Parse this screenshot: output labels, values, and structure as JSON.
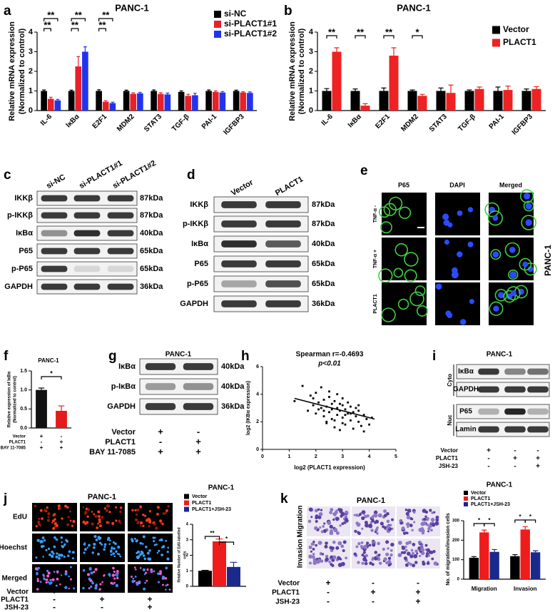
{
  "chart_data": [
    {
      "type": "bar",
      "panel": "a",
      "title": "PANC-1",
      "ylabel": [
        "Relative mRNA expression",
        "(Normalized to control)"
      ],
      "categories": [
        "IL-6",
        "IκBα",
        "E2F1",
        "MDM2",
        "STAT3",
        "TGF-β",
        "PAI-1",
        "IGFBP3"
      ],
      "series": [
        {
          "name": "si-NC",
          "color": "#000000",
          "values": [
            1.0,
            1.0,
            1.0,
            1.0,
            1.0,
            0.95,
            1.0,
            1.0
          ],
          "errors": [
            0.05,
            0.04,
            0.06,
            0.04,
            0.05,
            0.05,
            0.05,
            0.04
          ]
        },
        {
          "name": "si-PLACT1#1",
          "color": "#e8202a",
          "values": [
            0.6,
            2.25,
            0.45,
            0.85,
            0.85,
            0.75,
            0.95,
            0.92
          ],
          "errors": [
            0.08,
            0.5,
            0.05,
            0.05,
            0.06,
            0.08,
            0.05,
            0.04
          ]
        },
        {
          "name": "si-PLACT1#2",
          "color": "#2233ee",
          "values": [
            0.52,
            3.0,
            0.38,
            0.88,
            0.82,
            0.78,
            0.92,
            0.9
          ],
          "errors": [
            0.05,
            0.25,
            0.05,
            0.05,
            0.07,
            0.1,
            0.05,
            0.05
          ]
        }
      ],
      "significance": [
        "**",
        "**",
        "**",
        "**",
        "**",
        "**"
      ],
      "ylim": [
        0,
        4
      ],
      "yticks": [
        0,
        1,
        2,
        3,
        4
      ]
    },
    {
      "type": "bar",
      "panel": "b",
      "title": "PANC-1",
      "ylabel": [
        "Relative mRNA expression",
        "(Normalized to control)"
      ],
      "categories": [
        "IL-6",
        "IκBα",
        "E2F1",
        "MDM2",
        "STAT3",
        "TGF-β",
        "PAI-1",
        "IGFBP3"
      ],
      "series": [
        {
          "name": "Vector",
          "color": "#000000",
          "values": [
            1.0,
            1.0,
            1.0,
            1.0,
            1.0,
            1.0,
            1.0,
            1.0
          ],
          "errors": [
            0.12,
            0.1,
            0.15,
            0.05,
            0.15,
            0.05,
            0.2,
            0.1
          ]
        },
        {
          "name": "PLACT1",
          "color": "#ee2222",
          "values": [
            3.0,
            0.25,
            2.8,
            0.75,
            0.9,
            1.1,
            1.05,
            1.1
          ],
          "errors": [
            0.2,
            0.1,
            0.4,
            0.08,
            0.4,
            0.1,
            0.2,
            0.12
          ]
        }
      ],
      "significance": [
        "**",
        "**",
        "**",
        "*"
      ],
      "ylim": [
        0,
        4
      ],
      "yticks": [
        0,
        1,
        2,
        3,
        4
      ]
    },
    {
      "type": "bar",
      "panel": "f",
      "title": "PANC-1",
      "ylabel": [
        "Relative expression of IκBα",
        "(Normalized to control)"
      ],
      "values": [
        1.0,
        0.45
      ],
      "errors": [
        0.05,
        0.13
      ],
      "colors": [
        "#111111",
        "#e41a1c"
      ],
      "significance": [
        "*"
      ],
      "conditions": [
        {
          "label": "Vector",
          "signs": [
            "+",
            "-"
          ]
        },
        {
          "label": "PLACT1",
          "signs": [
            "-",
            "+"
          ]
        },
        {
          "label": "BAY 11-7085",
          "signs": [
            "+",
            "+"
          ]
        }
      ],
      "ylim": [
        0,
        1.5
      ],
      "yticks": [
        {
          "value": 0,
          "label": "0.0"
        },
        {
          "value": 0.5,
          "label": "0.5"
        },
        {
          "value": 1,
          "label": "1.0"
        },
        {
          "value": 1.5,
          "label": "1.5"
        }
      ]
    },
    {
      "type": "scatter",
      "panel": "h",
      "title": "Spearman r=-0.4693",
      "subtitle": "p<0.01",
      "xlabel": "log2 (PLACT1 expression)",
      "ylabel": "log2 (IKBα expression)",
      "x": [
        1.2,
        1.5,
        1.7,
        1.8,
        1.9,
        2.0,
        2.0,
        2.1,
        2.2,
        2.2,
        2.3,
        2.3,
        2.4,
        2.4,
        2.5,
        2.5,
        2.5,
        2.6,
        2.6,
        2.7,
        2.7,
        2.8,
        2.8,
        2.8,
        2.9,
        2.9,
        3.0,
        3.0,
        3.0,
        3.1,
        3.1,
        3.2,
        3.2,
        3.3,
        3.3,
        3.4,
        3.4,
        3.5,
        3.5,
        3.6,
        3.6,
        3.7,
        3.8,
        3.9,
        4.0,
        4.1,
        2.1,
        2.6,
        3.0,
        2.4,
        2.9,
        3.3,
        1.9,
        3.6,
        2.3,
        2.7,
        3.1,
        3.8
      ],
      "y": [
        3.5,
        4.6,
        2.8,
        3.9,
        3.2,
        4.1,
        2.6,
        3.4,
        3.0,
        4.5,
        2.4,
        3.6,
        3.1,
        1.9,
        3.8,
        2.7,
        4.2,
        3.3,
        2.2,
        3.5,
        1.6,
        3.0,
        2.5,
        4.0,
        2.8,
        1.4,
        3.2,
        2.3,
        3.7,
        2.9,
        1.8,
        2.6,
        3.4,
        2.1,
        3.1,
        2.7,
        1.5,
        2.4,
        3.0,
        2.0,
        2.8,
        1.7,
        2.5,
        2.2,
        1.8,
        2.3,
        2.9,
        2.9,
        1.9,
        2.0,
        3.3,
        2.6,
        3.7,
        3.2,
        2.8,
        2.1,
        2.5,
        1.3
      ],
      "fit": {
        "x": [
          1.2,
          4.2
        ],
        "y": [
          3.7,
          2.2
        ]
      },
      "color": "#000000",
      "xlim": [
        0,
        5
      ],
      "xticks": [
        0,
        1,
        2,
        3,
        4,
        5
      ],
      "ylim": [
        0,
        6
      ],
      "yticks": [
        0,
        2,
        4,
        6
      ]
    },
    {
      "type": "bar",
      "title": "PANC-1",
      "ylabel": [
        "Relative Number of EdU-labelled",
        "cells"
      ],
      "series": [
        {
          "name": "Vector",
          "color": "#000000",
          "values": [
            1.0
          ],
          "errors": [
            0.03
          ]
        },
        {
          "name": "PLACT1",
          "color": "#ee1c1c",
          "values": [
            2.9
          ],
          "errors": [
            0.15
          ]
        },
        {
          "name": "PLACT1+JSH-23",
          "color": "#1a2a8c",
          "values": [
            1.25
          ],
          "errors": [
            0.3
          ]
        }
      ],
      "significance": [
        "**",
        "*"
      ],
      "ylim": [
        0,
        4
      ],
      "yticks": [
        0,
        1,
        2,
        3,
        4
      ]
    },
    {
      "type": "bar",
      "title": "PANC-1",
      "ylabel": [
        "No. of migration/invasion cells"
      ],
      "categories": [
        "Migration",
        "Invasion"
      ],
      "series": [
        {
          "name": "Vector",
          "color": "#000000",
          "values": [
            110,
            118
          ],
          "errors": [
            6,
            8
          ]
        },
        {
          "name": "PLACT1",
          "color": "#ee1c1c",
          "values": [
            240,
            255
          ],
          "errors": [
            12,
            15
          ]
        },
        {
          "name": "PLACT1+JSH-23",
          "color": "#1a2a8c",
          "values": [
            140,
            138
          ],
          "errors": [
            12,
            8
          ]
        }
      ],
      "significance": [
        "*",
        "*",
        "*",
        "*"
      ],
      "ylim": [
        0,
        300
      ],
      "yticks": [
        0,
        100,
        200,
        300
      ]
    }
  ],
  "blots": [
    {
      "panel": "c",
      "lanes": [
        "si-NC",
        "si-PLACT1#1",
        "si-PLACT1#2"
      ],
      "rows": [
        {
          "protein": "IKKβ",
          "size": "87kDa"
        },
        {
          "protein": "p-IKKβ",
          "size": "87kDa"
        },
        {
          "protein": "IκBα",
          "size": "40kDa"
        },
        {
          "protein": "P65",
          "size": "65kDa"
        },
        {
          "protein": "p-P65",
          "size": "65kDa"
        },
        {
          "protein": "GAPDH",
          "size": "36kDa"
        }
      ]
    },
    {
      "panel": "d",
      "lanes": [
        "Vector",
        "PLACT1"
      ],
      "rows": [
        {
          "protein": "IKKβ",
          "size": "87kDa"
        },
        {
          "protein": "p-IKKβ",
          "size": "87kDa"
        },
        {
          "protein": "IκBα",
          "size": "40kDa"
        },
        {
          "protein": "P65",
          "size": "65kDa"
        },
        {
          "protein": "p-P65",
          "size": "65kDa"
        },
        {
          "protein": "GAPDH",
          "size": "36kDa"
        }
      ]
    },
    {
      "panel": "g",
      "title": "PANC-1",
      "rows": [
        {
          "protein": "IκBα",
          "size": "40kDa"
        },
        {
          "protein": "p-IκBα",
          "size": "40kDa"
        },
        {
          "protein": "GAPDH",
          "size": "36kDa"
        }
      ],
      "conditions": [
        {
          "label": "Vector",
          "signs": [
            "+",
            "-"
          ]
        },
        {
          "label": "PLACT1",
          "signs": [
            "-",
            "+"
          ]
        },
        {
          "label": "BAY 11-7085",
          "signs": [
            "+",
            "+"
          ]
        }
      ]
    },
    {
      "panel": "i",
      "title": "PANC-1",
      "rows": [
        {
          "protein": "IκBα"
        },
        {
          "protein": "GAPDH"
        },
        {
          "protein": "P65"
        },
        {
          "protein": "Lamin"
        }
      ],
      "compartments": [
        "Cyto",
        "Nuc"
      ],
      "conditions": [
        {
          "label": "Vector",
          "signs": [
            "+",
            "-",
            "-"
          ]
        },
        {
          "label": "PLACT1",
          "signs": [
            "-",
            "+",
            "+"
          ]
        },
        {
          "label": "JSH-23",
          "signs": [
            "-",
            "-",
            "+"
          ]
        }
      ]
    }
  ],
  "imaging": [
    {
      "panel": "e",
      "columns": [
        "P65",
        "DAPI",
        "Merged"
      ],
      "rows": [
        "TNF-α -",
        "TNF-α +",
        "PLACT1"
      ],
      "side": "PANC-1"
    },
    {
      "panel": "j",
      "title": "PANC-1",
      "rows": [
        "EdU",
        "Hoechst",
        "Merged"
      ],
      "conditions": [
        {
          "label": "Vector",
          "signs": [
            "+",
            "-",
            "-"
          ]
        },
        {
          "label": "PLACT1",
          "signs": [
            "-",
            "+",
            "+"
          ]
        },
        {
          "label": "JSH-23",
          "signs": [
            "-",
            "-",
            "+"
          ]
        }
      ]
    },
    {
      "panel": "k",
      "title": "PANC-1",
      "rows": [
        "Migration",
        "Invasion"
      ],
      "conditions": [
        {
          "label": "Vector",
          "signs": [
            "+",
            "-",
            "-"
          ]
        },
        {
          "label": "PLACT1",
          "signs": [
            "-",
            "+",
            "+"
          ]
        },
        {
          "label": "JSH-23",
          "signs": [
            "-",
            "-",
            "+"
          ]
        }
      ]
    }
  ]
}
